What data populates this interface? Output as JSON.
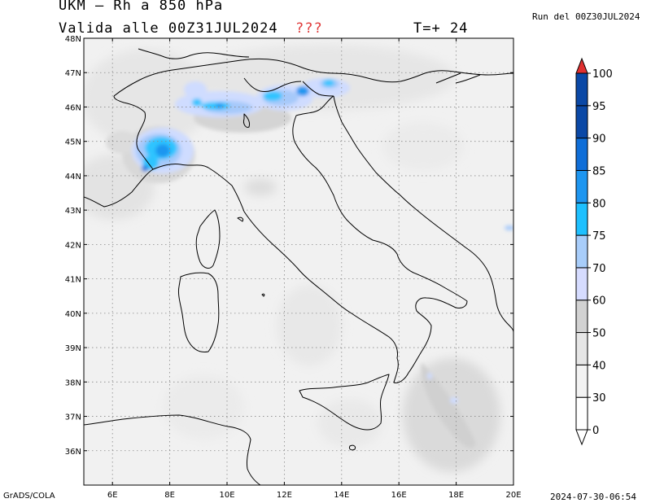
{
  "header": {
    "title": "UKM – Rh a 850 hPa",
    "validity": "Valida alle 00Z31JUL2024",
    "marker": "???",
    "timestep": "T=+ 24",
    "run": "Run del 00Z30JUL2024"
  },
  "footer": {
    "software": "GrADS/COLA",
    "timestamp": "2024-07-30-06:54"
  },
  "map": {
    "lon_range": [
      5,
      20
    ],
    "lat_range": [
      35,
      48
    ],
    "lat_ticks": [
      "36N",
      "37N",
      "38N",
      "39N",
      "40N",
      "41N",
      "42N",
      "43N",
      "44N",
      "45N",
      "46N",
      "47N",
      "48N"
    ],
    "lon_ticks": [
      "6E",
      "8E",
      "10E",
      "12E",
      "14E",
      "16E",
      "18E",
      "20E"
    ],
    "grid": true
  },
  "colorbar": {
    "levels": [
      "0",
      "30",
      "40",
      "50",
      "60",
      "70",
      "75",
      "80",
      "85",
      "90",
      "95",
      "100"
    ],
    "colors": [
      "#ffffff",
      "#ffffff",
      "#f3f3f3",
      "#e6e6e6",
      "#d2d2d2",
      "#d6dcff",
      "#a8cdfa",
      "#1ec0ff",
      "#1e96f0",
      "#0f6ed8",
      "#0a48a6",
      "#e03030"
    ]
  }
}
